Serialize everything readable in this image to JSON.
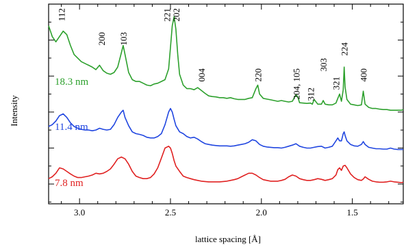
{
  "chart_data": {
    "type": "line",
    "xlabel": "lattice spacing [Å]",
    "ylabel": "Intensity",
    "xlim": [
      3.17,
      1.22
    ],
    "x_reversed": true,
    "x_ticks": [
      3.0,
      2.5,
      2.0,
      1.5
    ],
    "x_tick_labels": [
      "3.0",
      "2.5",
      "2.0",
      "1.5"
    ],
    "y_tick_labels_shown": false,
    "grid": false,
    "legend": "inline labels at left",
    "peak_labels": [
      {
        "text": "112",
        "x": 3.1
      },
      {
        "text": "200",
        "x": 2.88
      },
      {
        "text": "103",
        "x": 2.76
      },
      {
        "text": "221",
        "x": 2.52
      },
      {
        "text": "202",
        "x": 2.47
      },
      {
        "text": "004",
        "x": 2.33
      },
      {
        "text": "220",
        "x": 2.02
      },
      {
        "text": "204, 105",
        "x": 1.81
      },
      {
        "text": "312",
        "x": 1.73
      },
      {
        "text": "303",
        "x": 1.66
      },
      {
        "text": "321",
        "x": 1.59
      },
      {
        "text": "224",
        "x": 1.545
      },
      {
        "text": "400",
        "x": 1.44
      }
    ],
    "series": [
      {
        "name": "18.3 nm",
        "color": "#2ca02c",
        "x": [
          3.17,
          3.15,
          3.13,
          3.11,
          3.09,
          3.07,
          3.05,
          3.03,
          3.01,
          2.99,
          2.97,
          2.95,
          2.93,
          2.91,
          2.89,
          2.87,
          2.85,
          2.83,
          2.81,
          2.79,
          2.77,
          2.76,
          2.75,
          2.73,
          2.71,
          2.69,
          2.67,
          2.65,
          2.63,
          2.61,
          2.59,
          2.57,
          2.55,
          2.53,
          2.51,
          2.5,
          2.49,
          2.48,
          2.47,
          2.46,
          2.45,
          2.43,
          2.41,
          2.39,
          2.37,
          2.35,
          2.33,
          2.31,
          2.29,
          2.27,
          2.25,
          2.23,
          2.21,
          2.19,
          2.17,
          2.15,
          2.13,
          2.11,
          2.09,
          2.07,
          2.05,
          2.03,
          2.02,
          2.01,
          1.99,
          1.97,
          1.95,
          1.93,
          1.91,
          1.89,
          1.87,
          1.85,
          1.83,
          1.81,
          1.8,
          1.79,
          1.77,
          1.75,
          1.73,
          1.72,
          1.71,
          1.69,
          1.67,
          1.66,
          1.65,
          1.63,
          1.61,
          1.59,
          1.58,
          1.57,
          1.56,
          1.55,
          1.545,
          1.54,
          1.53,
          1.51,
          1.49,
          1.47,
          1.45,
          1.44,
          1.43,
          1.41,
          1.39,
          1.37,
          1.35,
          1.33,
          1.31,
          1.29,
          1.27,
          1.25,
          1.23,
          1.22
        ],
        "values": [
          2.6,
          2.3,
          2.15,
          2.3,
          2.45,
          2.35,
          2.05,
          1.8,
          1.7,
          1.6,
          1.55,
          1.5,
          1.45,
          1.38,
          1.5,
          1.35,
          1.28,
          1.25,
          1.3,
          1.45,
          1.85,
          2.05,
          1.8,
          1.3,
          1.1,
          1.05,
          1.05,
          1.0,
          0.95,
          0.93,
          0.98,
          1.0,
          1.05,
          1.1,
          1.4,
          2.0,
          2.6,
          2.85,
          2.5,
          1.8,
          1.25,
          0.95,
          0.85,
          0.85,
          0.82,
          0.88,
          0.8,
          0.72,
          0.65,
          0.63,
          0.62,
          0.6,
          0.6,
          0.58,
          0.6,
          0.57,
          0.55,
          0.55,
          0.55,
          0.58,
          0.6,
          0.85,
          0.95,
          0.7,
          0.58,
          0.56,
          0.54,
          0.52,
          0.5,
          0.52,
          0.5,
          0.48,
          0.5,
          0.68,
          0.62,
          0.46,
          0.45,
          0.44,
          0.45,
          0.42,
          0.55,
          0.42,
          0.42,
          0.52,
          0.42,
          0.4,
          0.4,
          0.45,
          0.58,
          0.7,
          0.5,
          0.82,
          1.45,
          0.9,
          0.55,
          0.42,
          0.4,
          0.38,
          0.4,
          0.78,
          0.42,
          0.33,
          0.3,
          0.3,
          0.28,
          0.27,
          0.27,
          0.25,
          0.25,
          0.25,
          0.25,
          0.27
        ]
      },
      {
        "name": "11.4 nm",
        "color": "#1f45e0",
        "x": [
          3.17,
          3.15,
          3.13,
          3.11,
          3.09,
          3.07,
          3.05,
          3.03,
          3.01,
          2.99,
          2.97,
          2.95,
          2.93,
          2.91,
          2.89,
          2.87,
          2.85,
          2.83,
          2.81,
          2.79,
          2.77,
          2.76,
          2.75,
          2.73,
          2.71,
          2.69,
          2.67,
          2.65,
          2.63,
          2.61,
          2.59,
          2.57,
          2.55,
          2.53,
          2.51,
          2.5,
          2.49,
          2.48,
          2.47,
          2.45,
          2.43,
          2.41,
          2.39,
          2.37,
          2.35,
          2.33,
          2.31,
          2.29,
          2.27,
          2.25,
          2.23,
          2.21,
          2.19,
          2.17,
          2.15,
          2.13,
          2.11,
          2.09,
          2.07,
          2.05,
          2.03,
          2.01,
          1.99,
          1.97,
          1.95,
          1.93,
          1.91,
          1.89,
          1.87,
          1.85,
          1.83,
          1.81,
          1.79,
          1.77,
          1.75,
          1.73,
          1.71,
          1.69,
          1.67,
          1.65,
          1.63,
          1.61,
          1.59,
          1.58,
          1.57,
          1.56,
          1.55,
          1.545,
          1.54,
          1.53,
          1.51,
          1.49,
          1.47,
          1.45,
          1.44,
          1.43,
          1.41,
          1.39,
          1.37,
          1.35,
          1.33,
          1.31,
          1.29,
          1.27,
          1.25,
          1.23,
          1.22
        ],
        "values": [
          0.7,
          0.75,
          0.85,
          1.0,
          1.05,
          0.95,
          0.8,
          0.7,
          0.65,
          0.62,
          0.6,
          0.6,
          0.58,
          0.6,
          0.65,
          0.62,
          0.6,
          0.62,
          0.75,
          0.95,
          1.1,
          1.15,
          0.95,
          0.72,
          0.55,
          0.5,
          0.48,
          0.45,
          0.4,
          0.38,
          0.38,
          0.42,
          0.5,
          0.75,
          1.1,
          1.2,
          1.1,
          0.9,
          0.72,
          0.55,
          0.5,
          0.42,
          0.38,
          0.4,
          0.35,
          0.28,
          0.22,
          0.2,
          0.18,
          0.17,
          0.16,
          0.16,
          0.16,
          0.15,
          0.16,
          0.18,
          0.2,
          0.22,
          0.26,
          0.33,
          0.3,
          0.2,
          0.15,
          0.13,
          0.12,
          0.11,
          0.11,
          0.1,
          0.12,
          0.15,
          0.18,
          0.22,
          0.15,
          0.12,
          0.1,
          0.1,
          0.12,
          0.14,
          0.15,
          0.1,
          0.12,
          0.15,
          0.3,
          0.38,
          0.3,
          0.3,
          0.5,
          0.55,
          0.45,
          0.3,
          0.2,
          0.16,
          0.15,
          0.2,
          0.28,
          0.2,
          0.12,
          0.1,
          0.08,
          0.08,
          0.07,
          0.07,
          0.1,
          0.07,
          0.06,
          0.06,
          0.06
        ]
      },
      {
        "name": "7.8 nm",
        "color": "#e02020",
        "x": [
          3.17,
          3.15,
          3.13,
          3.11,
          3.09,
          3.07,
          3.05,
          3.03,
          3.01,
          2.99,
          2.97,
          2.95,
          2.93,
          2.91,
          2.89,
          2.87,
          2.85,
          2.83,
          2.81,
          2.79,
          2.77,
          2.75,
          2.73,
          2.71,
          2.69,
          2.67,
          2.65,
          2.63,
          2.61,
          2.59,
          2.57,
          2.55,
          2.53,
          2.51,
          2.5,
          2.49,
          2.48,
          2.47,
          2.45,
          2.43,
          2.41,
          2.39,
          2.37,
          2.35,
          2.33,
          2.31,
          2.29,
          2.27,
          2.25,
          2.23,
          2.21,
          2.19,
          2.17,
          2.15,
          2.13,
          2.11,
          2.09,
          2.07,
          2.05,
          2.03,
          2.01,
          1.99,
          1.97,
          1.95,
          1.93,
          1.91,
          1.89,
          1.87,
          1.85,
          1.83,
          1.81,
          1.79,
          1.77,
          1.75,
          1.73,
          1.71,
          1.69,
          1.67,
          1.65,
          1.63,
          1.61,
          1.59,
          1.58,
          1.57,
          1.56,
          1.55,
          1.54,
          1.53,
          1.51,
          1.49,
          1.47,
          1.45,
          1.44,
          1.43,
          1.41,
          1.39,
          1.37,
          1.35,
          1.33,
          1.31,
          1.29,
          1.27,
          1.25,
          1.23,
          1.22
        ],
        "values": [
          0.15,
          0.2,
          0.3,
          0.45,
          0.42,
          0.35,
          0.28,
          0.22,
          0.18,
          0.18,
          0.2,
          0.22,
          0.25,
          0.3,
          0.28,
          0.3,
          0.35,
          0.42,
          0.55,
          0.7,
          0.75,
          0.7,
          0.55,
          0.35,
          0.22,
          0.18,
          0.15,
          0.15,
          0.18,
          0.28,
          0.45,
          0.72,
          1.0,
          1.05,
          1.0,
          0.85,
          0.65,
          0.5,
          0.35,
          0.22,
          0.18,
          0.15,
          0.12,
          0.1,
          0.08,
          0.07,
          0.06,
          0.06,
          0.06,
          0.06,
          0.07,
          0.08,
          0.1,
          0.12,
          0.15,
          0.2,
          0.25,
          0.3,
          0.3,
          0.25,
          0.18,
          0.12,
          0.1,
          0.08,
          0.08,
          0.08,
          0.1,
          0.13,
          0.2,
          0.25,
          0.22,
          0.15,
          0.12,
          0.1,
          0.1,
          0.12,
          0.15,
          0.13,
          0.1,
          0.12,
          0.15,
          0.25,
          0.4,
          0.45,
          0.38,
          0.5,
          0.52,
          0.45,
          0.28,
          0.18,
          0.12,
          0.1,
          0.14,
          0.2,
          0.13,
          0.08,
          0.06,
          0.05,
          0.05,
          0.06,
          0.08,
          0.06,
          0.05,
          0.04,
          0.05
        ]
      }
    ],
    "series_offsets": [
      1.8,
      0.9,
      0.0
    ]
  }
}
